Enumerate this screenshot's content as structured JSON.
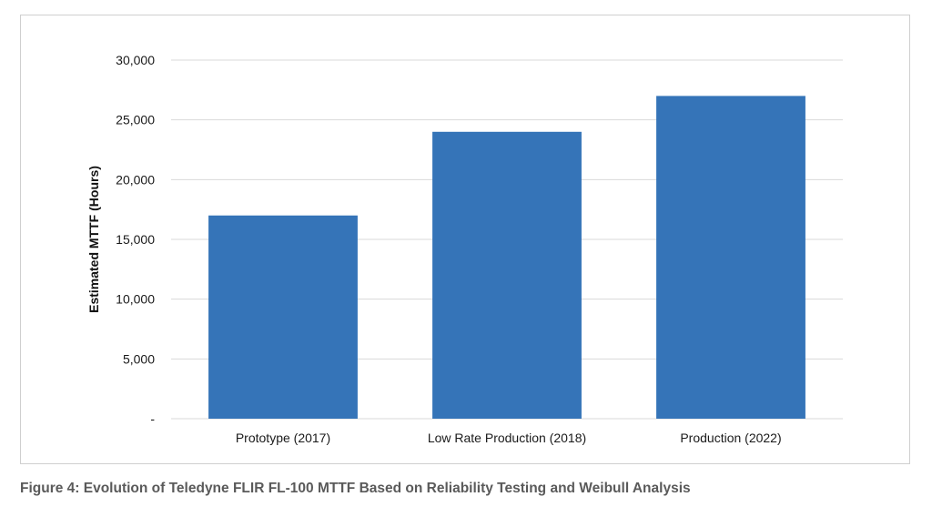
{
  "figure_caption": "Figure 4:  Evolution of Teledyne FLIR FL-100 MTTF Based on Reliability Testing and Weibull Analysis",
  "chart_data": {
    "type": "bar",
    "categories": [
      "Prototype (2017)",
      "Low Rate Production (2018)",
      "Production (2022)"
    ],
    "values": [
      17000,
      24000,
      27000
    ],
    "title": "",
    "xlabel": "",
    "ylabel": "Estimated MTTF (Hours)",
    "ylim": [
      0,
      30000
    ],
    "yticks": [
      0,
      5000,
      10000,
      15000,
      20000,
      25000,
      30000
    ],
    "ytick_labels": [
      "-",
      "5,000",
      "10,000",
      "15,000",
      "20,000",
      "25,000",
      "30,000"
    ],
    "grid": true,
    "legend": "none",
    "bar_color": "#3574b8",
    "grid_color": "#d9d9d9"
  }
}
